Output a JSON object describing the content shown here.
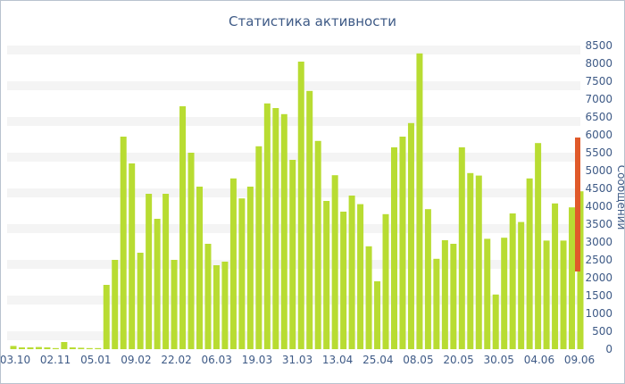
{
  "chart_data": {
    "type": "bar",
    "title": "Статистика активности",
    "ylabel": "Сообщений",
    "ylim": [
      0,
      8500
    ],
    "y_ticks": [
      0,
      500,
      1000,
      1500,
      2000,
      2500,
      3000,
      3500,
      4000,
      4500,
      5000,
      5500,
      6000,
      6500,
      7000,
      7500,
      8000,
      8500
    ],
    "x_tick_labels": [
      "03.10",
      "02.11",
      "05.01",
      "09.02",
      "22.02",
      "06.03",
      "19.03",
      "31.03",
      "13.04",
      "25.04",
      "08.05",
      "20.05",
      "30.05",
      "04.06",
      "09.06"
    ],
    "grid": "horizontal alternating bands",
    "bar_color": "#b8dc32",
    "scrollbar_color": "#e05a2a",
    "values": [
      90,
      50,
      50,
      60,
      50,
      30,
      200,
      50,
      40,
      30,
      30,
      1800,
      2500,
      5950,
      5200,
      2700,
      4350,
      3650,
      4350,
      2500,
      6800,
      5500,
      4550,
      2950,
      2350,
      2450,
      4780,
      4220,
      4550,
      5680,
      6880,
      6750,
      6580,
      5300,
      8050,
      7230,
      5830,
      4150,
      4870,
      3850,
      4300,
      4060,
      2880,
      1900,
      3780,
      5650,
      5950,
      6330,
      8280,
      3920,
      2530,
      3050,
      2950,
      5650,
      4930,
      4860,
      3090,
      1530,
      3120,
      3800,
      3560,
      4780,
      5770,
      3040,
      4080,
      3040,
      3970,
      4420
    ]
  }
}
